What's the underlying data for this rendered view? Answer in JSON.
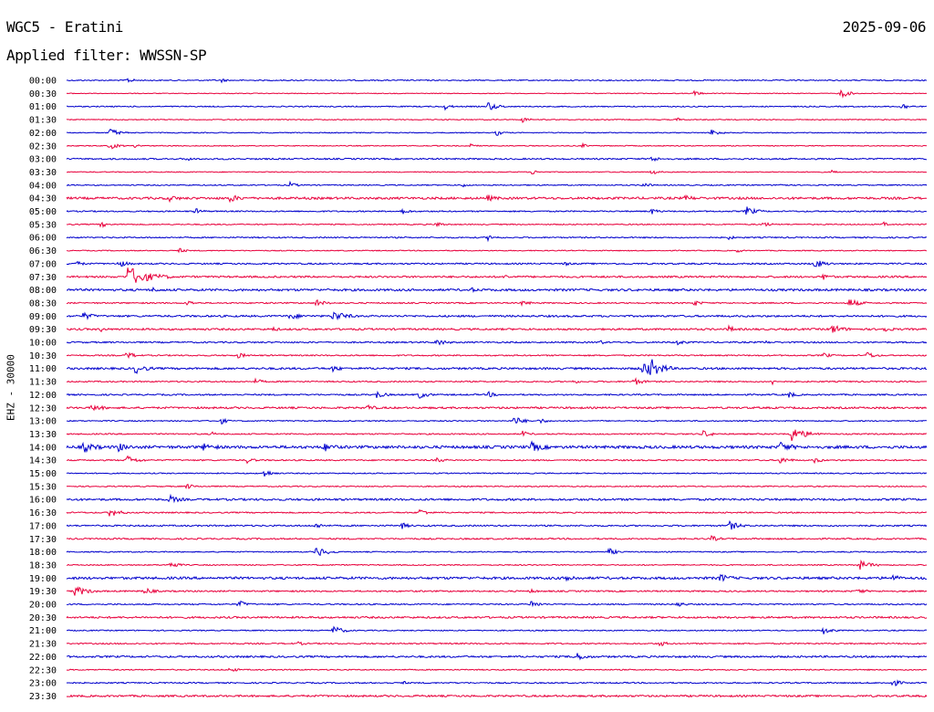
{
  "header": {
    "station": "WGC5 - Eratini",
    "date": "2025-09-06",
    "filter": "Applied filter: WWSSN-SP"
  },
  "chart_data": {
    "type": "line",
    "title": "WGC5 - Eratini",
    "ylabel": "EHZ - 30000",
    "colors": [
      "#0000cc",
      "#e8003c"
    ],
    "rows": [
      "00:00",
      "00:30",
      "01:00",
      "01:30",
      "02:00",
      "02:30",
      "03:00",
      "03:30",
      "04:00",
      "04:30",
      "05:00",
      "05:30",
      "06:00",
      "06:30",
      "07:00",
      "07:30",
      "08:00",
      "08:30",
      "09:00",
      "09:30",
      "10:00",
      "10:30",
      "11:00",
      "11:30",
      "12:00",
      "12:30",
      "13:00",
      "13:30",
      "14:00",
      "14:30",
      "15:00",
      "15:30",
      "16:00",
      "16:30",
      "17:00",
      "17:30",
      "18:00",
      "18:30",
      "19:00",
      "19:30",
      "20:00",
      "20:30",
      "21:00",
      "21:30",
      "22:00",
      "22:30",
      "23:00",
      "23:30"
    ],
    "noise": [
      0.6,
      0.4,
      0.6,
      0.5,
      0.5,
      0.5,
      0.8,
      0.5,
      0.6,
      1.2,
      0.7,
      0.6,
      0.7,
      0.5,
      0.8,
      1.0,
      1.2,
      0.7,
      1.0,
      1.0,
      0.8,
      0.7,
      1.1,
      0.7,
      0.8,
      1.0,
      0.6,
      0.7,
      1.5,
      0.7,
      0.6,
      0.6,
      1.1,
      0.7,
      0.8,
      0.8,
      0.6,
      0.6,
      1.3,
      0.8,
      0.7,
      1.0,
      0.6,
      0.7,
      1.0,
      0.6,
      0.7,
      1.0
    ],
    "events": [
      [
        [
          0.07,
          3
        ],
        [
          0.18,
          2
        ]
      ],
      [
        [
          0.73,
          3
        ],
        [
          0.9,
          5
        ]
      ],
      [
        [
          0.44,
          3
        ],
        [
          0.49,
          5
        ],
        [
          0.97,
          4
        ]
      ],
      [
        [
          0.53,
          3
        ],
        [
          0.71,
          2
        ]
      ],
      [
        [
          0.05,
          5
        ],
        [
          0.5,
          3
        ],
        [
          0.75,
          4
        ]
      ],
      [
        [
          0.05,
          4
        ],
        [
          0.08,
          2
        ],
        [
          0.47,
          2
        ],
        [
          0.6,
          2
        ]
      ],
      [
        [
          0.14,
          2
        ],
        [
          0.68,
          3
        ]
      ],
      [
        [
          0.54,
          3
        ],
        [
          0.68,
          3
        ],
        [
          0.89,
          2
        ]
      ],
      [
        [
          0.26,
          3
        ],
        [
          0.46,
          2
        ],
        [
          0.67,
          3
        ],
        [
          0.83,
          2
        ]
      ],
      [
        [
          0.12,
          3
        ],
        [
          0.19,
          4
        ],
        [
          0.49,
          3
        ],
        [
          0.72,
          3
        ]
      ],
      [
        [
          0.15,
          3
        ],
        [
          0.39,
          3
        ],
        [
          0.68,
          3
        ],
        [
          0.79,
          5
        ]
      ],
      [
        [
          0.04,
          3
        ],
        [
          0.43,
          3
        ],
        [
          0.81,
          3
        ],
        [
          0.95,
          2
        ]
      ],
      [
        [
          0.49,
          3
        ],
        [
          0.77,
          2
        ]
      ],
      [
        [
          0.13,
          3
        ],
        [
          0.78,
          2
        ]
      ],
      [
        [
          0.01,
          3
        ],
        [
          0.06,
          4
        ],
        [
          0.58,
          2
        ],
        [
          0.87,
          5
        ]
      ],
      [
        [
          0.07,
          12
        ],
        [
          0.51,
          2
        ],
        [
          0.88,
          3
        ]
      ],
      [
        [
          0.1,
          2
        ],
        [
          0.47,
          2
        ]
      ],
      [
        [
          0.14,
          3
        ],
        [
          0.29,
          4
        ],
        [
          0.53,
          3
        ],
        [
          0.73,
          3
        ],
        [
          0.91,
          5
        ]
      ],
      [
        [
          0.02,
          4
        ],
        [
          0.26,
          4
        ],
        [
          0.31,
          6
        ]
      ],
      [
        [
          0.04,
          2
        ],
        [
          0.24,
          2
        ],
        [
          0.77,
          3
        ],
        [
          0.89,
          5
        ],
        [
          0.95,
          3
        ]
      ],
      [
        [
          0.43,
          4
        ],
        [
          0.62,
          2
        ],
        [
          0.71,
          3
        ],
        [
          0.81,
          2
        ]
      ],
      [
        [
          0.07,
          4
        ],
        [
          0.2,
          3
        ],
        [
          0.88,
          3
        ],
        [
          0.93,
          4
        ]
      ],
      [
        [
          0.08,
          5
        ],
        [
          0.31,
          3
        ],
        [
          0.67,
          8
        ],
        [
          0.68,
          6
        ]
      ],
      [
        [
          0.22,
          3
        ],
        [
          0.59,
          2
        ],
        [
          0.66,
          4
        ],
        [
          0.82,
          3
        ]
      ],
      [
        [
          0.36,
          4
        ],
        [
          0.41,
          4
        ],
        [
          0.49,
          3
        ],
        [
          0.84,
          3
        ]
      ],
      [
        [
          0.03,
          4
        ],
        [
          0.35,
          3
        ]
      ],
      [
        [
          0.18,
          3
        ],
        [
          0.52,
          5
        ],
        [
          0.55,
          3
        ]
      ],
      [
        [
          0.17,
          2
        ],
        [
          0.53,
          3
        ],
        [
          0.74,
          4
        ],
        [
          0.84,
          9
        ]
      ],
      [
        [
          0.02,
          5
        ],
        [
          0.06,
          4
        ],
        [
          0.16,
          4
        ],
        [
          0.3,
          4
        ],
        [
          0.54,
          5
        ],
        [
          0.83,
          5
        ]
      ],
      [
        [
          0.07,
          5
        ],
        [
          0.21,
          3
        ],
        [
          0.43,
          3
        ],
        [
          0.83,
          4
        ],
        [
          0.87,
          3
        ]
      ],
      [
        [
          0.23,
          4
        ]
      ],
      [
        [
          0.14,
          3
        ]
      ],
      [
        [
          0.12,
          4
        ]
      ],
      [
        [
          0.05,
          5
        ],
        [
          0.41,
          4
        ]
      ],
      [
        [
          0.29,
          3
        ],
        [
          0.39,
          3
        ],
        [
          0.77,
          5
        ]
      ],
      [
        [
          0.75,
          3
        ]
      ],
      [
        [
          0.29,
          6
        ],
        [
          0.63,
          4
        ]
      ],
      [
        [
          0.12,
          4
        ],
        [
          0.92,
          6
        ]
      ],
      [
        [
          0.58,
          4
        ],
        [
          0.76,
          4
        ],
        [
          0.96,
          3
        ]
      ],
      [
        [
          0.01,
          6
        ],
        [
          0.09,
          4
        ],
        [
          0.54,
          2
        ],
        [
          0.92,
          3
        ]
      ],
      [
        [
          0.2,
          4
        ],
        [
          0.54,
          4
        ],
        [
          0.71,
          3
        ]
      ],
      [],
      [
        [
          0.31,
          5
        ],
        [
          0.88,
          4
        ]
      ],
      [
        [
          0.27,
          2
        ],
        [
          0.69,
          3
        ]
      ],
      [
        [
          0.59,
          5
        ]
      ],
      [
        [
          0.19,
          3
        ]
      ],
      [
        [
          0.39,
          2
        ],
        [
          0.96,
          4
        ]
      ],
      []
    ]
  }
}
